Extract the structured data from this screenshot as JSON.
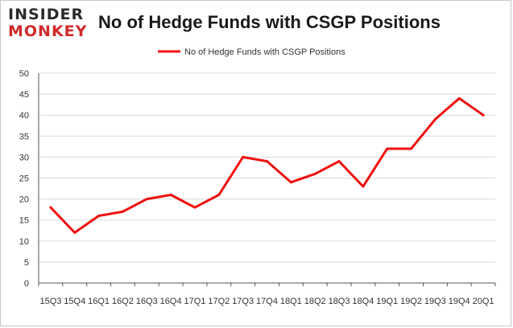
{
  "logo": {
    "line1": "INSIDER",
    "line2": "MONKEY"
  },
  "colors": {
    "series": "#ee1111",
    "grid": "#d9d9d9",
    "axis": "#555555",
    "logo_accent": "#d02a2a"
  },
  "chart_data": {
    "type": "line",
    "title": "No of Hedge Funds with CSGP Positions",
    "legend_position": "top-center",
    "grid": true,
    "ylim": [
      0,
      50
    ],
    "yticks": [
      "0",
      "5",
      "10",
      "15",
      "20",
      "25",
      "30",
      "35",
      "40",
      "45",
      "50"
    ],
    "categories": [
      "15Q3",
      "15Q4",
      "16Q1",
      "16Q2",
      "16Q3",
      "16Q4",
      "17Q1",
      "17Q2",
      "17Q3",
      "17Q4",
      "18Q1",
      "18Q2",
      "18Q3",
      "18Q4",
      "19Q1",
      "19Q2",
      "19Q3",
      "19Q4",
      "20Q1"
    ],
    "series": [
      {
        "name": "No of Hedge Funds with CSGP Positions",
        "values": [
          18,
          12,
          16,
          17,
          20,
          21,
          18,
          21,
          30,
          29,
          24,
          26,
          29,
          23,
          32,
          32,
          39,
          44,
          40
        ]
      }
    ]
  }
}
